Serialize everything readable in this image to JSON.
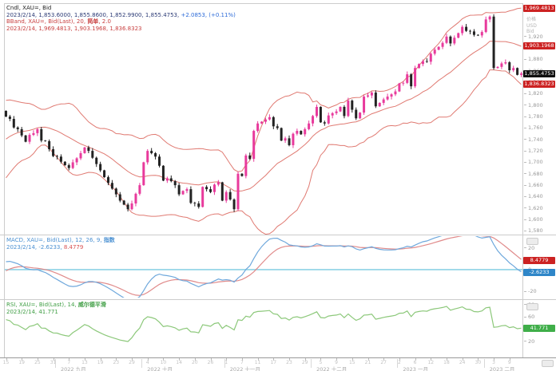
{
  "header": {
    "line1": "Cndl, XAU=, Bid",
    "ohlc": "2023/2/14, 1,853.6000, 1,855.8600, 1,852.9900, 1,855.4753,",
    "change": "+2.0853, (+0.11%)",
    "bband_line": "BBand, XAU=, Bid(Last), 20,",
    "bband_type": "简单",
    "bband_tail": ", 2.0",
    "bband_values": "2023/2/14, 1,969.4813, 1,903.1968, 1,836.8323"
  },
  "macd_header": {
    "line1": "MACD, XAU=, Bid(Last), 12, 26, 9,",
    "type": "指数",
    "values_left": "2023/2/14, -2.6233,",
    "signal": "8.4779"
  },
  "rsi_header": {
    "line1": "RSI, XAU=, Bid(Last), 14,",
    "type": "威尔德平滑",
    "line2": "2023/2/14, 41.771"
  },
  "axis": {
    "price_header": [
      "价格",
      "USD",
      "Bid"
    ]
  },
  "colors": {
    "up": "#e83a9c",
    "down": "#222222",
    "band": "#e07a72",
    "macd_line": "#6fa8dc",
    "macd_signal": "#e08a8a",
    "zero_line": "#8ed3e6",
    "rsi_line": "#8cc87a",
    "box_red": "#cc2222",
    "box_blue": "#2e86c8",
    "box_green": "#3fae49",
    "box_black": "#111111",
    "frame": "#cccccc",
    "axis_line": "#999999"
  },
  "chart_data": {
    "type": "candlestick",
    "symbol": "XAU=",
    "interval": "daily",
    "title": "Cndl, XAU=, Bid with BBand(20,2), MACD(12,26,9), RSI(14)",
    "pre_closes": [
      1826,
      1822,
      1817,
      1807,
      1811,
      1806,
      1795,
      1783,
      1771,
      1742,
      1738,
      1726,
      1710,
      1712,
      1700,
      1697,
      1681,
      1690,
      1700,
      1710,
      1718,
      1724,
      1712,
      1708,
      1716,
      1736,
      1752,
      1765,
      1760,
      1772,
      1775,
      1764,
      1775,
      1786,
      1790
    ],
    "closes": [
      1780,
      1776,
      1761,
      1758,
      1747,
      1736,
      1748,
      1751,
      1758,
      1738,
      1737,
      1723,
      1711,
      1710,
      1701,
      1695,
      1690,
      1700,
      1707,
      1716,
      1726,
      1720,
      1708,
      1697,
      1686,
      1674,
      1664,
      1654,
      1644,
      1633,
      1626,
      1618,
      1628,
      1645,
      1660,
      1700,
      1720,
      1716,
      1710,
      1694,
      1668,
      1672,
      1667,
      1660,
      1644,
      1650,
      1653,
      1629,
      1628,
      1622,
      1657,
      1653,
      1648,
      1661,
      1665,
      1633,
      1648,
      1635,
      1618,
      1680,
      1676,
      1712,
      1706,
      1755,
      1768,
      1771,
      1775,
      1779,
      1763,
      1760,
      1738,
      1742,
      1730,
      1750,
      1755,
      1749,
      1758,
      1768,
      1781,
      1797,
      1770,
      1768,
      1782,
      1786,
      1789,
      1797,
      1781,
      1808,
      1792,
      1777,
      1787,
      1815,
      1817,
      1822,
      1798,
      1804,
      1810,
      1815,
      1819,
      1824,
      1838,
      1839,
      1854,
      1833,
      1865,
      1872,
      1877,
      1876,
      1890,
      1897,
      1902,
      1909,
      1920,
      1908,
      1918,
      1926,
      1937,
      1930,
      1929,
      1923,
      1922,
      1928,
      1950,
      1955,
      1865,
      1867,
      1873,
      1875,
      1861,
      1865,
      1853,
      1855.5
    ],
    "bollinger": {
      "period": 20,
      "mult": 2
    },
    "price_axis": {
      "domain": [
        1575,
        1977
      ],
      "ticks": [
        1920,
        1900,
        1880,
        1860,
        1840,
        1820,
        1800,
        1780,
        1760,
        1740,
        1720,
        1700,
        1680,
        1660,
        1640,
        1620,
        1600,
        1580
      ],
      "boxes": [
        {
          "value": 1969.4813,
          "label": "1,969.4813",
          "color": "red"
        },
        {
          "value": 1903.1968,
          "label": "1,903.1968",
          "color": "red"
        },
        {
          "value": 1855.4753,
          "label": "1,855.4753",
          "color": "black"
        },
        {
          "value": 1836.8323,
          "label": "1,836.8323",
          "color": "red"
        }
      ]
    },
    "macd_axis": {
      "domain": [
        -25,
        30
      ],
      "ticks": [
        20,
        0,
        -20
      ],
      "boxes": [
        {
          "value": 8.4779,
          "label": "8.4779",
          "color": "red"
        },
        {
          "value": -2.6233,
          "label": "-2.6233",
          "color": "blue"
        }
      ]
    },
    "rsi_axis": {
      "domain": [
        -5,
        85
      ],
      "ticks": [
        80,
        60,
        40,
        20
      ],
      "boxes": [
        {
          "value": 41.771,
          "label": "41.771",
          "color": "green"
        }
      ]
    },
    "x_axis": {
      "day_ticks": [
        {
          "i": 0,
          "label": "15"
        },
        {
          "i": 4,
          "label": "19"
        },
        {
          "i": 8,
          "label": "25"
        },
        {
          "i": 12,
          "label": "31"
        },
        {
          "i": 16,
          "label": "7"
        },
        {
          "i": 20,
          "label": "13"
        },
        {
          "i": 24,
          "label": "19"
        },
        {
          "i": 28,
          "label": "23"
        },
        {
          "i": 32,
          "label": "29"
        },
        {
          "i": 36,
          "label": "4"
        },
        {
          "i": 40,
          "label": "10"
        },
        {
          "i": 44,
          "label": "14"
        },
        {
          "i": 48,
          "label": "20"
        },
        {
          "i": 52,
          "label": "26"
        },
        {
          "i": 56,
          "label": "1"
        },
        {
          "i": 60,
          "label": "7"
        },
        {
          "i": 64,
          "label": "11"
        },
        {
          "i": 68,
          "label": "17"
        },
        {
          "i": 72,
          "label": "23"
        },
        {
          "i": 76,
          "label": "29"
        },
        {
          "i": 80,
          "label": "5"
        },
        {
          "i": 84,
          "label": "9"
        },
        {
          "i": 88,
          "label": "15"
        },
        {
          "i": 92,
          "label": "21"
        },
        {
          "i": 96,
          "label": "27"
        },
        {
          "i": 100,
          "label": "2"
        },
        {
          "i": 104,
          "label": "6"
        },
        {
          "i": 108,
          "label": "12"
        },
        {
          "i": 112,
          "label": "18"
        },
        {
          "i": 116,
          "label": "24"
        },
        {
          "i": 120,
          "label": "30"
        },
        {
          "i": 124,
          "label": "3"
        },
        {
          "i": 128,
          "label": "9"
        }
      ],
      "month_labels": [
        {
          "i": 13,
          "label": "2022 九月"
        },
        {
          "i": 35,
          "label": "2022 十月"
        },
        {
          "i": 56,
          "label": "2022 十一月"
        },
        {
          "i": 78,
          "label": "2022 十二月"
        },
        {
          "i": 100,
          "label": "2023 一月"
        },
        {
          "i": 122,
          "label": "2023 二月"
        }
      ]
    }
  }
}
